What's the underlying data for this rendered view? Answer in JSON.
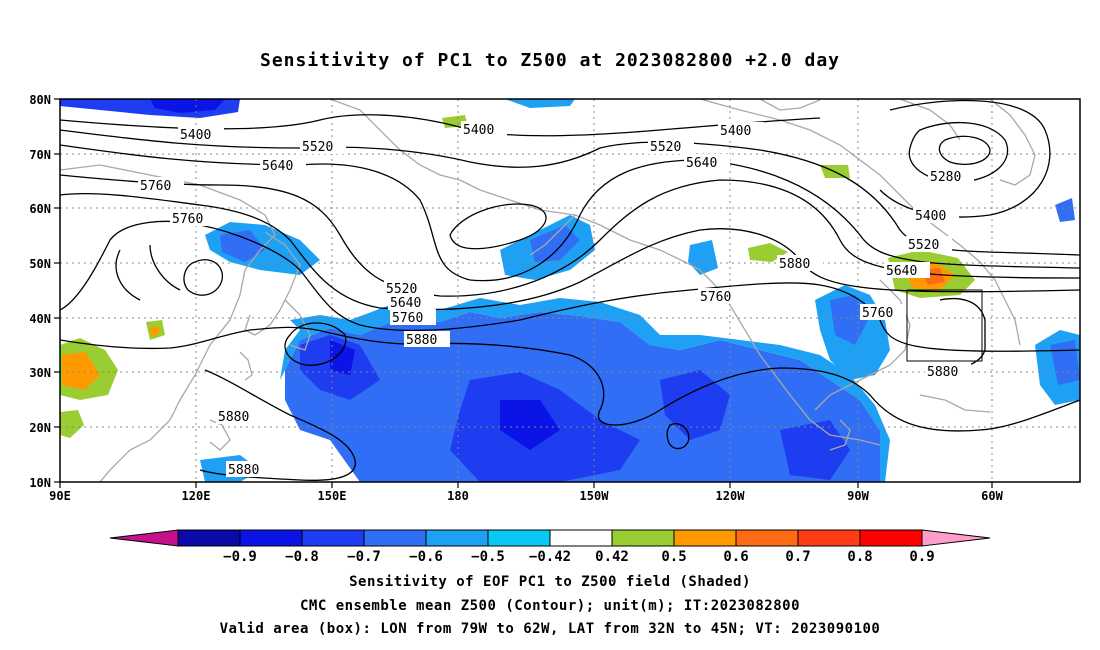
{
  "title": "Sensitivity of PC1 to Z500 at 2023082800 +2.0 day",
  "lat_labels": [
    "80N",
    "70N",
    "60N",
    "50N",
    "40N",
    "30N",
    "20N",
    "10N"
  ],
  "lon_labels": [
    "90E",
    "120E",
    "150E",
    "180",
    "150W",
    "120W",
    "90W",
    "60W"
  ],
  "contour_labels": [
    "5400",
    "5400",
    "5400",
    "5520",
    "5520",
    "5640",
    "5640",
    "5760",
    "5760",
    "5280",
    "5400",
    "5520",
    "5640",
    "5880",
    "5520",
    "5640",
    "5760",
    "5880",
    "5760",
    "5760",
    "5880",
    "5880",
    "5880"
  ],
  "colorbar": {
    "labels": [
      "-0.9",
      "-0.8",
      "-0.7",
      "-0.6",
      "-0.5",
      "-0.42",
      "0.42",
      "0.5",
      "0.6",
      "0.7",
      "0.8",
      "0.9"
    ],
    "colors": [
      "#c8108c",
      "#0a0aa8",
      "#0a14e6",
      "#1e3cf0",
      "#2f6ef5",
      "#1ea0f5",
      "#0ac8f5",
      "#ffffff",
      "#9acd32",
      "#ff9900",
      "#ff6a14",
      "#ff3c14",
      "#ff0000",
      "#ff9ec8"
    ]
  },
  "captions": [
    "Sensitivity of EOF PC1 to Z500 field (Shaded)",
    "CMC ensemble mean Z500 (Contour); unit(m); IT:2023082800",
    "Valid area (box): LON from 79W to 62W, LAT from 32N to 45N; VT: 2023090100"
  ]
}
